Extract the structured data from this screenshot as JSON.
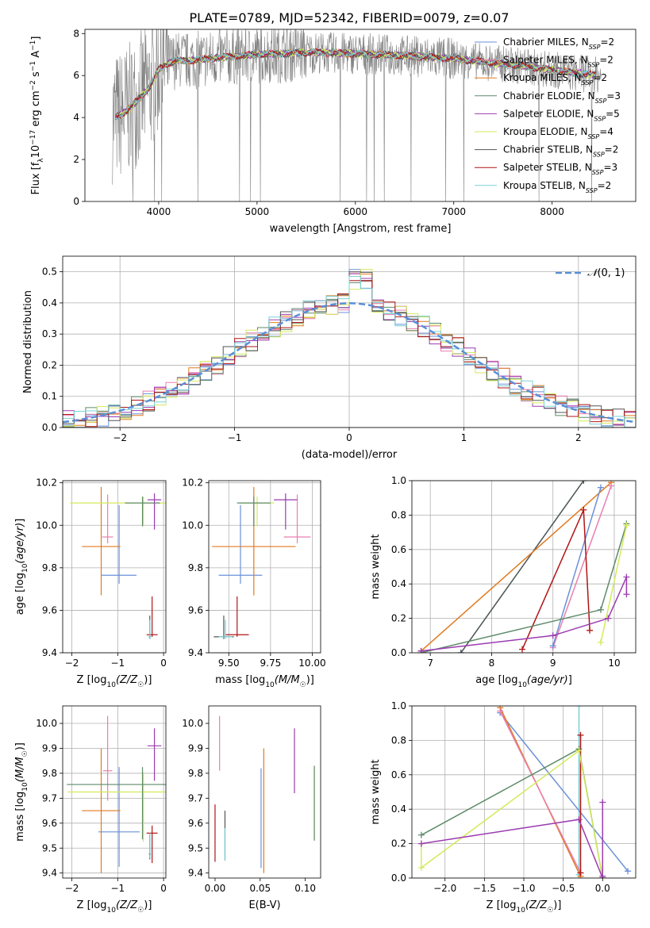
{
  "title": "PLATE=0789, MJD=52342, FIBERID=0079, z=0.07",
  "colors": {
    "Chabrier MILES": "#6a90d8",
    "Salpeter MILES": "#e87fb0",
    "Kroupa MILES": "#e07a1f",
    "Chabrier ELODIE": "#5e8a6a",
    "Salpeter ELODIE": "#9b3bb0",
    "Kroupa ELODIE": "#d4ea5a",
    "Chabrier STELIB": "#555555",
    "Salpeter STELIB": "#b01515",
    "Kroupa STELIB": "#7ad0d8",
    "data": "#808080",
    "normal": "#5b8fd6"
  },
  "chart_data": [
    {
      "id": "spectrum",
      "type": "line",
      "xlabel": "wavelength [Angstrom, rest frame]",
      "ylabel": "Flux [f_λ 10^-17 erg cm^-2 s^-1 A^-1]",
      "xlim": [
        3250,
        8850
      ],
      "ylim": [
        0,
        8.2
      ],
      "xticks": [
        4000,
        5000,
        6000,
        7000,
        8000
      ],
      "yticks": [
        0,
        2,
        4,
        6,
        8
      ],
      "grid": false,
      "legend_position": "top-right",
      "legend": [
        {
          "model": "Chabrier MILES",
          "label": "Chabrier MILES, N",
          "nssp": "=2"
        },
        {
          "model": "Salpeter MILES",
          "label": "Salpeter MILES, N",
          "nssp": "=2"
        },
        {
          "model": "Kroupa MILES",
          "label": "Kroupa MILES, N",
          "nssp": "=2"
        },
        {
          "model": "Chabrier ELODIE",
          "label": "Chabrier ELODIE, N",
          "nssp": "=3"
        },
        {
          "model": "Salpeter ELODIE",
          "label": "Salpeter ELODIE, N",
          "nssp": "=5"
        },
        {
          "model": "Kroupa ELODIE",
          "label": "Kroupa ELODIE, N",
          "nssp": "=4"
        },
        {
          "model": "Chabrier STELIB",
          "label": "Chabrier STELIB, N",
          "nssp": "=2"
        },
        {
          "model": "Salpeter STELIB",
          "label": "Salpeter STELIB, N",
          "nssp": "=3"
        },
        {
          "model": "Kroupa STELIB",
          "label": "Kroupa STELIB, N",
          "nssp": "=2"
        }
      ],
      "continuum": {
        "x": [
          3550,
          3600,
          3700,
          3800,
          3900,
          4000,
          4100,
          4200,
          4300,
          4500,
          4700,
          5000,
          5300,
          5600,
          6000,
          6500,
          7000,
          7400,
          7800,
          8100,
          8500
        ],
        "y": [
          4.0,
          4.1,
          4.4,
          4.9,
          5.4,
          6.3,
          6.6,
          6.75,
          6.7,
          6.8,
          6.9,
          7.0,
          7.05,
          7.1,
          7.05,
          6.95,
          6.8,
          6.6,
          6.4,
          6.2,
          6.0
        ]
      }
    },
    {
      "id": "residuals",
      "type": "histogram",
      "xlabel": "(data-model)/error",
      "ylabel": "Normed distribution",
      "xlim": [
        -2.5,
        2.5
      ],
      "ylim": [
        0,
        0.55
      ],
      "xticks": [
        -2,
        -1,
        0,
        1,
        2
      ],
      "yticks": [
        0.0,
        0.1,
        0.2,
        0.3,
        0.4,
        0.5
      ],
      "grid": true,
      "legend_position": "top-right",
      "legend_label": "N(0,1)",
      "bin_width": 0.1
    },
    {
      "id": "age-vs-Z",
      "type": "scatter",
      "xlabel": "Z [log10(Z/Z☉)]",
      "ylabel": "age [log10(age/yr)]",
      "xlim": [
        -2.2,
        0.05
      ],
      "ylim": [
        9.4,
        10.21
      ],
      "xticks": [
        -2,
        -1,
        0
      ],
      "yticks": [
        9.4,
        9.6,
        9.8,
        10.0,
        10.2
      ],
      "grid": true,
      "points": [
        {
          "model": "Chabrier MILES",
          "x": -0.97,
          "y": 9.765,
          "xerr": 0.38,
          "yerr": [
            0.04,
            0.33
          ]
        },
        {
          "model": "Kroupa MILES",
          "x": -1.36,
          "y": 9.9,
          "xerr": 0.42,
          "yerr": [
            0.23,
            0.28
          ]
        },
        {
          "model": "Salpeter MILES",
          "x": -1.22,
          "y": 9.945,
          "xerr": 0.12,
          "yerr": [
            0.03,
            0.2
          ]
        },
        {
          "model": "Kroupa ELODIE",
          "x": -0.44,
          "y": 10.105,
          "xerr": 1.6,
          "yerr": [
            0.11,
            0.03
          ]
        },
        {
          "model": "Chabrier ELODIE",
          "x": -0.46,
          "y": 10.105,
          "xerr": 0.38,
          "yerr": [
            0.11,
            0.03
          ]
        },
        {
          "model": "Salpeter ELODIE",
          "x": -0.2,
          "y": 10.12,
          "xerr": 0.15,
          "yerr": [
            0.14,
            0.03
          ]
        },
        {
          "model": "Chabrier STELIB",
          "x": -0.3,
          "y": 9.475,
          "xerr": 0.03,
          "yerr": [
            0.01,
            0.1
          ]
        },
        {
          "model": "Salpeter STELIB",
          "x": -0.25,
          "y": 9.485,
          "xerr": 0.12,
          "yerr": [
            0.01,
            0.18
          ]
        },
        {
          "model": "Kroupa STELIB",
          "x": -0.3,
          "y": 9.475,
          "xerr": 0.03,
          "yerr": [
            0.01,
            0.08
          ]
        }
      ]
    },
    {
      "id": "age-vs-mass",
      "type": "scatter",
      "xlabel": "mass [log10(M/M☉)]",
      "ylabel": "",
      "xlim": [
        9.38,
        10.05
      ],
      "ylim": [
        9.4,
        10.21
      ],
      "xticks": [
        9.5,
        9.75,
        10.0
      ],
      "yticks": [
        9.4,
        9.6,
        9.8,
        10.0,
        10.2
      ],
      "grid": true,
      "points": [
        {
          "model": "Chabrier MILES",
          "x": 9.57,
          "y": 9.765,
          "xerr": 0.13,
          "yerr": [
            0.04,
            0.33
          ]
        },
        {
          "model": "Kroupa MILES",
          "x": 9.65,
          "y": 9.9,
          "xerr": 0.25,
          "yerr": [
            0.23,
            0.28
          ]
        },
        {
          "model": "Salpeter MILES",
          "x": 9.91,
          "y": 9.945,
          "xerr": 0.08,
          "yerr": [
            0.03,
            0.2
          ]
        },
        {
          "model": "Kroupa ELODIE",
          "x": 9.67,
          "y": 10.105,
          "xerr": 0.1,
          "yerr": [
            0.11,
            0.03
          ]
        },
        {
          "model": "Chabrier ELODIE",
          "x": 9.65,
          "y": 10.105,
          "xerr": 0.1,
          "yerr": [
            0.11,
            0.03
          ]
        },
        {
          "model": "Salpeter ELODIE",
          "x": 9.84,
          "y": 10.12,
          "xerr": 0.07,
          "yerr": [
            0.14,
            0.03
          ]
        },
        {
          "model": "Chabrier STELIB",
          "x": 9.47,
          "y": 9.475,
          "xerr": 0.06,
          "yerr": [
            0.01,
            0.1
          ]
        },
        {
          "model": "Salpeter STELIB",
          "x": 9.55,
          "y": 9.485,
          "xerr": 0.07,
          "yerr": [
            0.01,
            0.18
          ]
        },
        {
          "model": "Kroupa STELIB",
          "x": 9.48,
          "y": 9.475,
          "xerr": 0.04,
          "yerr": [
            0.01,
            0.08
          ]
        }
      ]
    },
    {
      "id": "weight-vs-age",
      "type": "line",
      "xlabel": "age [log10(age/yr)]",
      "ylabel": "mass weight",
      "xlim": [
        6.7,
        10.35
      ],
      "ylim": [
        0,
        1.0
      ],
      "xticks": [
        7,
        8,
        9,
        10
      ],
      "yticks": [
        0.0,
        0.2,
        0.4,
        0.6,
        0.8,
        1.0
      ],
      "grid": true,
      "series": [
        {
          "model": "Kroupa STELIB",
          "x": [
            7.5,
            9.5
          ],
          "y": [
            0.0,
            1.0
          ]
        },
        {
          "model": "Chabrier STELIB",
          "x": [
            7.5,
            9.5
          ],
          "y": [
            0.0,
            1.0
          ]
        },
        {
          "model": "Kroupa MILES",
          "x": [
            6.85,
            9.95
          ],
          "y": [
            0.01,
            0.99
          ]
        },
        {
          "model": "Salpeter MILES",
          "x": [
            9.0,
            9.95
          ],
          "y": [
            0.03,
            0.97
          ]
        },
        {
          "model": "Chabrier MILES",
          "x": [
            9.0,
            9.78
          ],
          "y": [
            0.04,
            0.96
          ]
        },
        {
          "model": "Salpeter STELIB",
          "x": [
            8.5,
            9.5,
            9.6
          ],
          "y": [
            0.02,
            0.83,
            0.13
          ]
        },
        {
          "model": "Chabrier ELODIE",
          "x": [
            6.85,
            9.78,
            10.2
          ],
          "y": [
            0.0,
            0.25,
            0.75
          ]
        },
        {
          "model": "Kroupa ELODIE",
          "x": [
            9.78,
            10.2
          ],
          "y": [
            0.06,
            0.74
          ]
        },
        {
          "model": "Salpeter ELODIE",
          "x": [
            6.85,
            9.0,
            9.9,
            10.2,
            10.2
          ],
          "y": [
            0.01,
            0.1,
            0.2,
            0.44,
            0.34
          ]
        }
      ]
    },
    {
      "id": "mass-vs-Z",
      "type": "scatter",
      "xlabel": "Z [log10(Z/Z☉)]",
      "ylabel": "mass [log10(M/M☉)]",
      "xlim": [
        -2.2,
        0.05
      ],
      "ylim": [
        9.38,
        10.07
      ],
      "xticks": [
        -2,
        -1,
        0
      ],
      "yticks": [
        9.4,
        9.5,
        9.6,
        9.7,
        9.8,
        9.9,
        10.0
      ],
      "grid": true,
      "points": [
        {
          "model": "Chabrier MILES",
          "x": -0.97,
          "y": 9.565,
          "xerr": 0.45,
          "yerr": [
            0.14,
            0.26
          ]
        },
        {
          "model": "Kroupa MILES",
          "x": -1.36,
          "y": 9.65,
          "xerr": 0.42,
          "yerr": [
            0.25,
            0.25
          ]
        },
        {
          "model": "Salpeter MILES",
          "x": -1.22,
          "y": 9.81,
          "xerr": 0.1,
          "yerr": [
            0.12,
            0.22
          ]
        },
        {
          "model": "Kroupa ELODIE",
          "x": -0.44,
          "y": 9.725,
          "xerr": 1.65,
          "yerr": [
            0.2,
            0.08
          ]
        },
        {
          "model": "Chabrier ELODIE",
          "x": -0.46,
          "y": 9.755,
          "xerr": 1.65,
          "yerr": [
            0.22,
            0.07
          ]
        },
        {
          "model": "Salpeter ELODIE",
          "x": -0.2,
          "y": 9.91,
          "xerr": 0.15,
          "yerr": [
            0.14,
            0.07
          ]
        },
        {
          "model": "Chabrier STELIB",
          "x": -0.3,
          "y": 9.475,
          "xerr": 0.02,
          "yerr": [
            0.02,
            0.08
          ]
        },
        {
          "model": "Salpeter STELIB",
          "x": -0.25,
          "y": 9.56,
          "xerr": 0.12,
          "yerr": [
            0.12,
            0.03
          ]
        },
        {
          "model": "Kroupa STELIB",
          "x": -0.3,
          "y": 9.48,
          "xerr": 0.02,
          "yerr": [
            0.02,
            0.08
          ]
        }
      ]
    },
    {
      "id": "mass-vs-EBV",
      "type": "scatter",
      "xlabel": "E(B-V)",
      "ylabel": "",
      "xlim": [
        -0.007,
        0.117
      ],
      "ylim": [
        9.38,
        10.07
      ],
      "xticks": [
        0.0,
        0.05,
        0.1
      ],
      "yticks": [
        9.4,
        9.5,
        9.6,
        9.7,
        9.8,
        9.9,
        10.0
      ],
      "grid": false,
      "points": [
        {
          "model": "Salpeter STELIB",
          "x": 0.0,
          "y": 9.565,
          "yerr": [
            0.12,
            0.11
          ]
        },
        {
          "model": "Salpeter MILES",
          "x": 0.005,
          "y": 9.92,
          "yerr": [
            0.11,
            0.11
          ]
        },
        {
          "model": "Chabrier STELIB",
          "x": 0.011,
          "y": 9.55,
          "yerr": [
            0.1,
            0.1
          ]
        },
        {
          "model": "Kroupa STELIB",
          "x": 0.011,
          "y": 9.52,
          "yerr": [
            0.07,
            0.06
          ]
        },
        {
          "model": "Kroupa MILES",
          "x": 0.054,
          "y": 9.65,
          "yerr": [
            0.25,
            0.25
          ]
        },
        {
          "model": "Chabrier MILES",
          "x": 0.051,
          "y": 9.57,
          "yerr": [
            0.15,
            0.25
          ]
        },
        {
          "model": "Salpeter ELODIE",
          "x": 0.088,
          "y": 9.85,
          "yerr": [
            0.13,
            0.13
          ]
        },
        {
          "model": "Kroupa ELODIE",
          "x": 0.11,
          "y": 9.68,
          "yerr": [
            0.15,
            0.15
          ]
        },
        {
          "model": "Chabrier ELODIE",
          "x": 0.11,
          "y": 9.68,
          "yerr": [
            0.15,
            0.15
          ]
        }
      ]
    },
    {
      "id": "weight-vs-Z",
      "type": "line",
      "xlabel": "Z [log10(Z/Z☉)]",
      "ylabel": "mass weight",
      "xlim": [
        -2.42,
        0.42
      ],
      "ylim": [
        0,
        1.0
      ],
      "xticks": [
        -2.0,
        -1.5,
        -1.0,
        -0.5,
        0.0
      ],
      "yticks": [
        0.0,
        0.2,
        0.4,
        0.6,
        0.8,
        1.0
      ],
      "grid": true,
      "series": [
        {
          "model": "Kroupa STELIB",
          "x": [
            -0.3,
            -0.3
          ],
          "y": [
            1.0,
            0.02
          ]
        },
        {
          "model": "Chabrier MILES",
          "x": [
            -1.3,
            0.32
          ],
          "y": [
            0.96,
            0.04
          ]
        },
        {
          "model": "Kroupa MILES",
          "x": [
            -1.3,
            -0.28
          ],
          "y": [
            0.99,
            0.01
          ]
        },
        {
          "model": "Salpeter MILES",
          "x": [
            -1.3,
            -0.28
          ],
          "y": [
            0.97,
            0.03
          ]
        },
        {
          "model": "Salpeter STELIB",
          "x": [
            -0.28,
            -0.28
          ],
          "y": [
            0.83,
            0.03
          ]
        },
        {
          "model": "Chabrier ELODIE",
          "x": [
            -2.3,
            -0.3,
            0.0
          ],
          "y": [
            0.25,
            0.75,
            0.0
          ]
        },
        {
          "model": "Kroupa ELODIE",
          "x": [
            -2.3,
            -2.3,
            -0.3,
            0.0
          ],
          "y": [
            0.2,
            0.06,
            0.74,
            0.0
          ]
        },
        {
          "model": "Salpeter ELODIE",
          "x": [
            -2.3,
            -0.3,
            0.0,
            0.0,
            0.0
          ],
          "y": [
            0.2,
            0.34,
            0.0,
            0.44,
            0.01
          ]
        }
      ]
    }
  ]
}
